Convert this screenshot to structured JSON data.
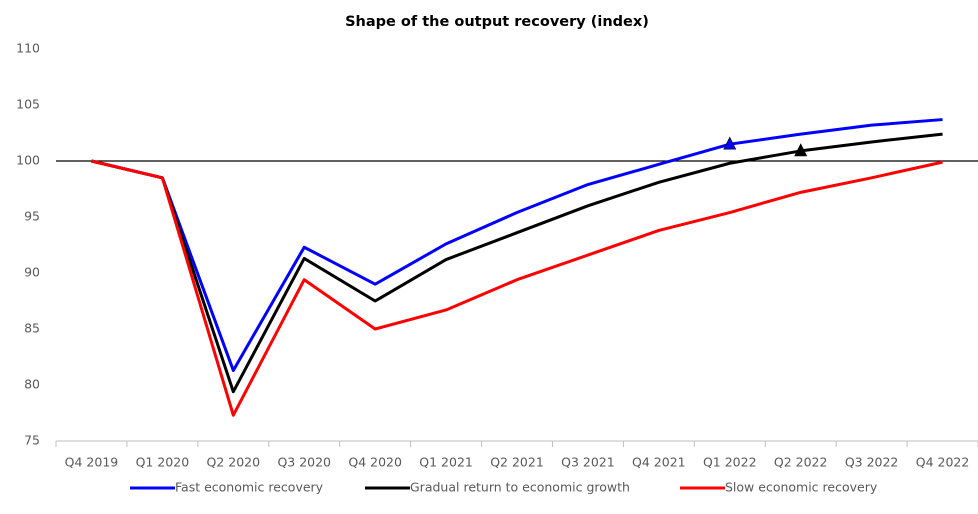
{
  "chart_data": {
    "type": "line",
    "title": "Shape of the output recovery (index)",
    "categories": [
      "Q4 2019",
      "Q1 2020",
      "Q2 2020",
      "Q3 2020",
      "Q4 2020",
      "Q1 2021",
      "Q2 2021",
      "Q3 2021",
      "Q4 2021",
      "Q1 2022",
      "Q2 2022",
      "Q3 2022",
      "Q4 2022"
    ],
    "series": [
      {
        "name": "Fast economic recovery",
        "color": "#0000ff",
        "values": [
          100,
          98.5,
          81.3,
          92.3,
          89.0,
          92.6,
          95.4,
          97.9,
          99.7,
          101.5,
          102.4,
          103.2,
          103.7
        ],
        "marker_index": 9
      },
      {
        "name": "Gradual return to economic growth",
        "color": "#000000",
        "values": [
          100,
          98.5,
          79.4,
          91.3,
          87.5,
          91.2,
          93.6,
          96.0,
          98.1,
          99.8,
          100.9,
          101.7,
          102.4
        ],
        "marker_index": 10
      },
      {
        "name": "Slow economic recovery",
        "color": "#ff0000",
        "values": [
          100,
          98.5,
          77.3,
          89.4,
          85.0,
          86.7,
          89.4,
          91.6,
          93.8,
          95.4,
          97.2,
          98.5,
          99.9
        ]
      }
    ],
    "ylim": [
      75,
      110
    ],
    "yticks": [
      75,
      80,
      85,
      90,
      95,
      100,
      105,
      110
    ],
    "reference_line": 100,
    "grid": false,
    "legend": "bottom"
  }
}
